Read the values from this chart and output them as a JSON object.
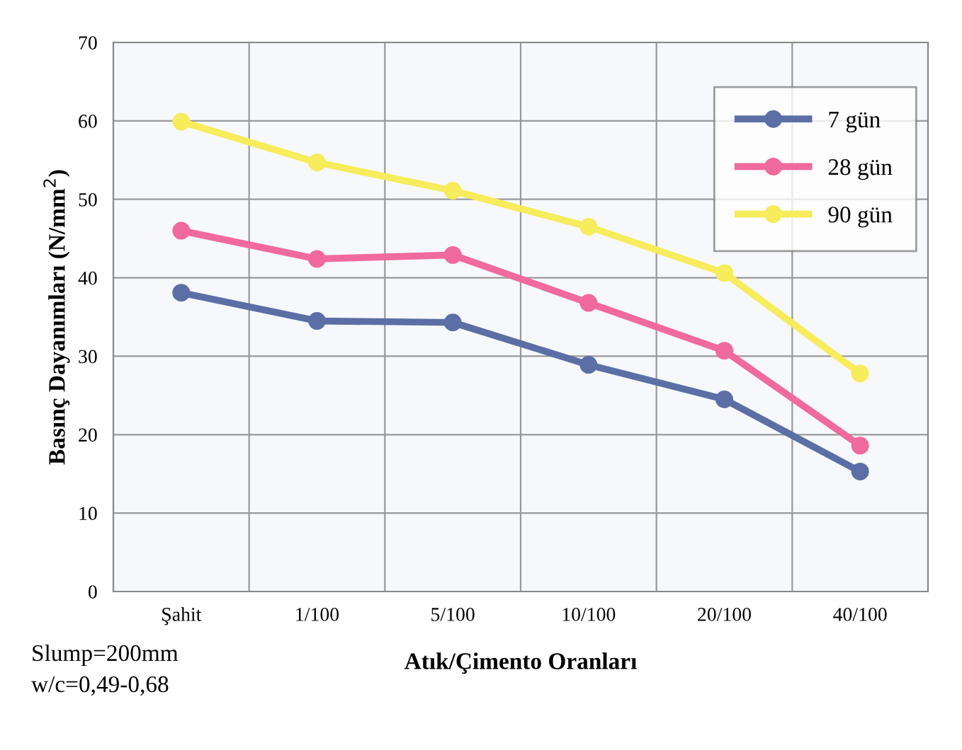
{
  "chart_data": {
    "type": "line",
    "xlabel": "Atık/Çimento Oranları",
    "ylabel": "Basınç Dayanımları (N/mm$^{2}$)",
    "categories": [
      "Şahit",
      "1/100",
      "5/100",
      "10/100",
      "20/100",
      "40/100"
    ],
    "series": [
      {
        "name": "7 gün",
        "color": "#5b6fa6",
        "values": [
          38.1,
          34.5,
          34.3,
          28.9,
          24.5,
          15.3
        ]
      },
      {
        "name": "28 gün",
        "color": "#f06a9e",
        "values": [
          46.0,
          42.4,
          42.9,
          36.8,
          30.7,
          18.6
        ]
      },
      {
        "name": "90 gün",
        "color": "#f6ec5c",
        "values": [
          59.9,
          54.7,
          51.1,
          46.5,
          40.6,
          27.8
        ]
      }
    ],
    "ylim": [
      0,
      70
    ],
    "yticks": [
      0,
      10,
      20,
      30,
      40,
      50,
      60,
      70
    ],
    "grid": true,
    "legend": "top right",
    "marker": "circle",
    "line_style": "solid",
    "annotations": [
      "Slump=200mm",
      "w/c=0,49-0,68"
    ]
  }
}
